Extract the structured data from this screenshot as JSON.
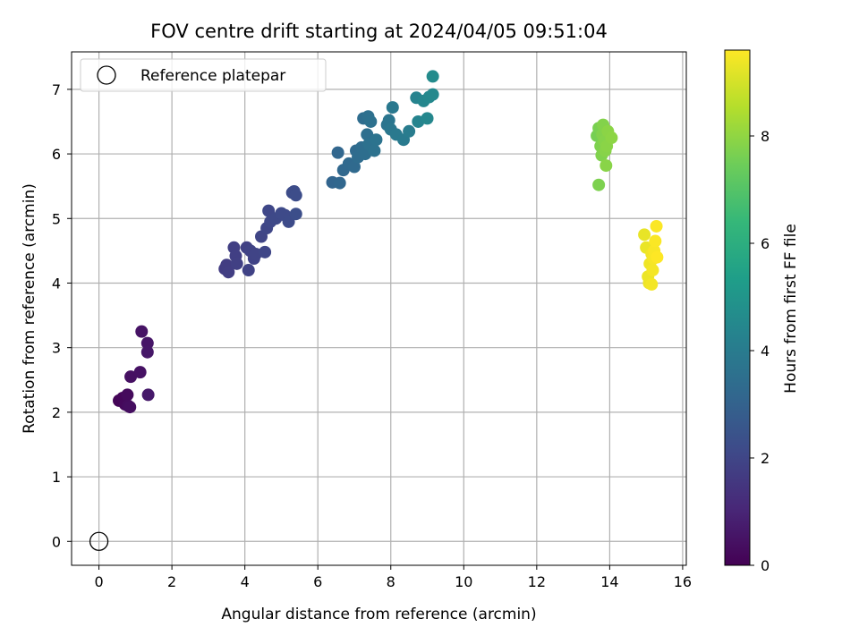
{
  "chart_data": {
    "type": "scatter",
    "title": "FOV centre drift starting at 2024/04/05 09:51:04",
    "xlabel": "Angular distance from reference (arcmin)",
    "ylabel": "Rotation from reference (arcmin)",
    "xlim": [
      -0.75,
      16.1
    ],
    "ylim": [
      -0.37,
      7.58
    ],
    "xticks": [
      0,
      2,
      4,
      6,
      8,
      10,
      12,
      14,
      16
    ],
    "yticks": [
      0,
      1,
      2,
      3,
      4,
      5,
      6,
      7
    ],
    "grid": true,
    "legend": {
      "position": "top-left",
      "entries": [
        {
          "label": "Reference platepar",
          "marker": "open-circle"
        }
      ]
    },
    "reference_point": {
      "x": 0,
      "y": 0
    },
    "colorbar": {
      "label": "Hours from first FF file",
      "colormap": "viridis",
      "range": [
        0,
        9.6
      ],
      "ticks": [
        0,
        2,
        4,
        6,
        8
      ]
    },
    "points": [
      {
        "x": 0.55,
        "y": 2.18,
        "h": 0.1
      },
      {
        "x": 0.65,
        "y": 2.22,
        "h": 0.15
      },
      {
        "x": 0.72,
        "y": 2.12,
        "h": 0.2
      },
      {
        "x": 0.78,
        "y": 2.27,
        "h": 0.25
      },
      {
        "x": 0.8,
        "y": 2.1,
        "h": 0.3
      },
      {
        "x": 0.85,
        "y": 2.08,
        "h": 0.35
      },
      {
        "x": 0.87,
        "y": 2.55,
        "h": 0.4
      },
      {
        "x": 1.13,
        "y": 2.62,
        "h": 0.45
      },
      {
        "x": 1.17,
        "y": 3.25,
        "h": 0.5
      },
      {
        "x": 1.33,
        "y": 3.07,
        "h": 0.55
      },
      {
        "x": 1.33,
        "y": 2.93,
        "h": 0.6
      },
      {
        "x": 1.35,
        "y": 2.27,
        "h": 0.65
      },
      {
        "x": 3.45,
        "y": 4.22,
        "h": 1.7
      },
      {
        "x": 3.5,
        "y": 4.28,
        "h": 1.72
      },
      {
        "x": 3.55,
        "y": 4.17,
        "h": 1.75
      },
      {
        "x": 3.7,
        "y": 4.55,
        "h": 1.78
      },
      {
        "x": 3.75,
        "y": 4.42,
        "h": 1.8
      },
      {
        "x": 3.78,
        "y": 4.3,
        "h": 1.82
      },
      {
        "x": 4.05,
        "y": 4.55,
        "h": 1.85
      },
      {
        "x": 4.1,
        "y": 4.2,
        "h": 1.88
      },
      {
        "x": 4.15,
        "y": 4.5,
        "h": 1.9
      },
      {
        "x": 4.25,
        "y": 4.38,
        "h": 1.92
      },
      {
        "x": 4.3,
        "y": 4.45,
        "h": 1.95
      },
      {
        "x": 4.45,
        "y": 4.72,
        "h": 1.97
      },
      {
        "x": 4.55,
        "y": 4.48,
        "h": 2.0
      },
      {
        "x": 4.6,
        "y": 4.85,
        "h": 2.02
      },
      {
        "x": 4.65,
        "y": 5.12,
        "h": 2.05
      },
      {
        "x": 4.7,
        "y": 4.95,
        "h": 2.08
      },
      {
        "x": 4.85,
        "y": 5.0,
        "h": 2.1
      },
      {
        "x": 5.0,
        "y": 5.08,
        "h": 2.12
      },
      {
        "x": 5.1,
        "y": 5.05,
        "h": 2.15
      },
      {
        "x": 5.2,
        "y": 4.95,
        "h": 2.18
      },
      {
        "x": 5.3,
        "y": 5.4,
        "h": 2.2
      },
      {
        "x": 5.35,
        "y": 5.42,
        "h": 2.22
      },
      {
        "x": 5.4,
        "y": 5.36,
        "h": 2.25
      },
      {
        "x": 5.4,
        "y": 5.07,
        "h": 2.28
      },
      {
        "x": 6.4,
        "y": 5.56,
        "h": 3.1
      },
      {
        "x": 6.55,
        "y": 6.02,
        "h": 3.15
      },
      {
        "x": 6.6,
        "y": 5.55,
        "h": 3.18
      },
      {
        "x": 6.7,
        "y": 5.75,
        "h": 3.2
      },
      {
        "x": 6.85,
        "y": 5.85,
        "h": 3.25
      },
      {
        "x": 7.0,
        "y": 5.8,
        "h": 3.28
      },
      {
        "x": 7.05,
        "y": 6.05,
        "h": 3.3
      },
      {
        "x": 7.1,
        "y": 5.95,
        "h": 3.35
      },
      {
        "x": 7.2,
        "y": 6.1,
        "h": 3.4
      },
      {
        "x": 7.25,
        "y": 6.55,
        "h": 3.42
      },
      {
        "x": 7.3,
        "y": 6.0,
        "h": 3.45
      },
      {
        "x": 7.35,
        "y": 6.3,
        "h": 3.5
      },
      {
        "x": 7.38,
        "y": 6.58,
        "h": 3.52
      },
      {
        "x": 7.4,
        "y": 6.15,
        "h": 3.55
      },
      {
        "x": 7.45,
        "y": 6.5,
        "h": 3.58
      },
      {
        "x": 7.55,
        "y": 6.05,
        "h": 3.6
      },
      {
        "x": 7.6,
        "y": 6.22,
        "h": 3.65
      },
      {
        "x": 7.9,
        "y": 6.45,
        "h": 3.7
      },
      {
        "x": 7.95,
        "y": 6.52,
        "h": 3.75
      },
      {
        "x": 8.0,
        "y": 6.38,
        "h": 3.8
      },
      {
        "x": 8.05,
        "y": 6.72,
        "h": 3.85
      },
      {
        "x": 8.15,
        "y": 6.3,
        "h": 3.9
      },
      {
        "x": 8.35,
        "y": 6.22,
        "h": 3.95
      },
      {
        "x": 8.5,
        "y": 6.35,
        "h": 4.0
      },
      {
        "x": 8.7,
        "y": 6.87,
        "h": 4.3
      },
      {
        "x": 8.75,
        "y": 6.5,
        "h": 4.35
      },
      {
        "x": 8.9,
        "y": 6.82,
        "h": 4.4
      },
      {
        "x": 9.0,
        "y": 6.55,
        "h": 4.45
      },
      {
        "x": 9.05,
        "y": 6.88,
        "h": 4.5
      },
      {
        "x": 9.15,
        "y": 6.92,
        "h": 4.55
      },
      {
        "x": 9.15,
        "y": 7.2,
        "h": 4.6
      },
      {
        "x": 13.65,
        "y": 6.28,
        "h": 7.6
      },
      {
        "x": 13.7,
        "y": 6.4,
        "h": 7.65
      },
      {
        "x": 13.7,
        "y": 5.52,
        "h": 7.7
      },
      {
        "x": 13.75,
        "y": 6.12,
        "h": 7.72
      },
      {
        "x": 13.78,
        "y": 5.98,
        "h": 7.75
      },
      {
        "x": 13.8,
        "y": 6.3,
        "h": 7.78
      },
      {
        "x": 13.82,
        "y": 6.45,
        "h": 7.8
      },
      {
        "x": 13.85,
        "y": 6.2,
        "h": 7.82
      },
      {
        "x": 13.88,
        "y": 6.05,
        "h": 7.85
      },
      {
        "x": 13.9,
        "y": 5.82,
        "h": 7.88
      },
      {
        "x": 13.92,
        "y": 6.12,
        "h": 7.9
      },
      {
        "x": 13.95,
        "y": 6.35,
        "h": 7.92
      },
      {
        "x": 14.05,
        "y": 6.25,
        "h": 7.95
      },
      {
        "x": 14.95,
        "y": 4.75,
        "h": 9.3
      },
      {
        "x": 15.0,
        "y": 4.55,
        "h": 9.32
      },
      {
        "x": 15.05,
        "y": 4.1,
        "h": 9.35
      },
      {
        "x": 15.08,
        "y": 4.0,
        "h": 9.37
      },
      {
        "x": 15.1,
        "y": 4.3,
        "h": 9.4
      },
      {
        "x": 15.15,
        "y": 4.45,
        "h": 9.42
      },
      {
        "x": 15.15,
        "y": 3.98,
        "h": 9.45
      },
      {
        "x": 15.18,
        "y": 4.2,
        "h": 9.47
      },
      {
        "x": 15.2,
        "y": 4.38,
        "h": 9.5
      },
      {
        "x": 15.22,
        "y": 4.5,
        "h": 9.52
      },
      {
        "x": 15.25,
        "y": 4.65,
        "h": 9.55
      },
      {
        "x": 15.28,
        "y": 4.88,
        "h": 9.57
      },
      {
        "x": 15.3,
        "y": 4.4,
        "h": 9.6
      }
    ]
  },
  "colors": {
    "grid": "#b0b0b0",
    "axis": "#000000",
    "legend_border": "#cccccc"
  }
}
